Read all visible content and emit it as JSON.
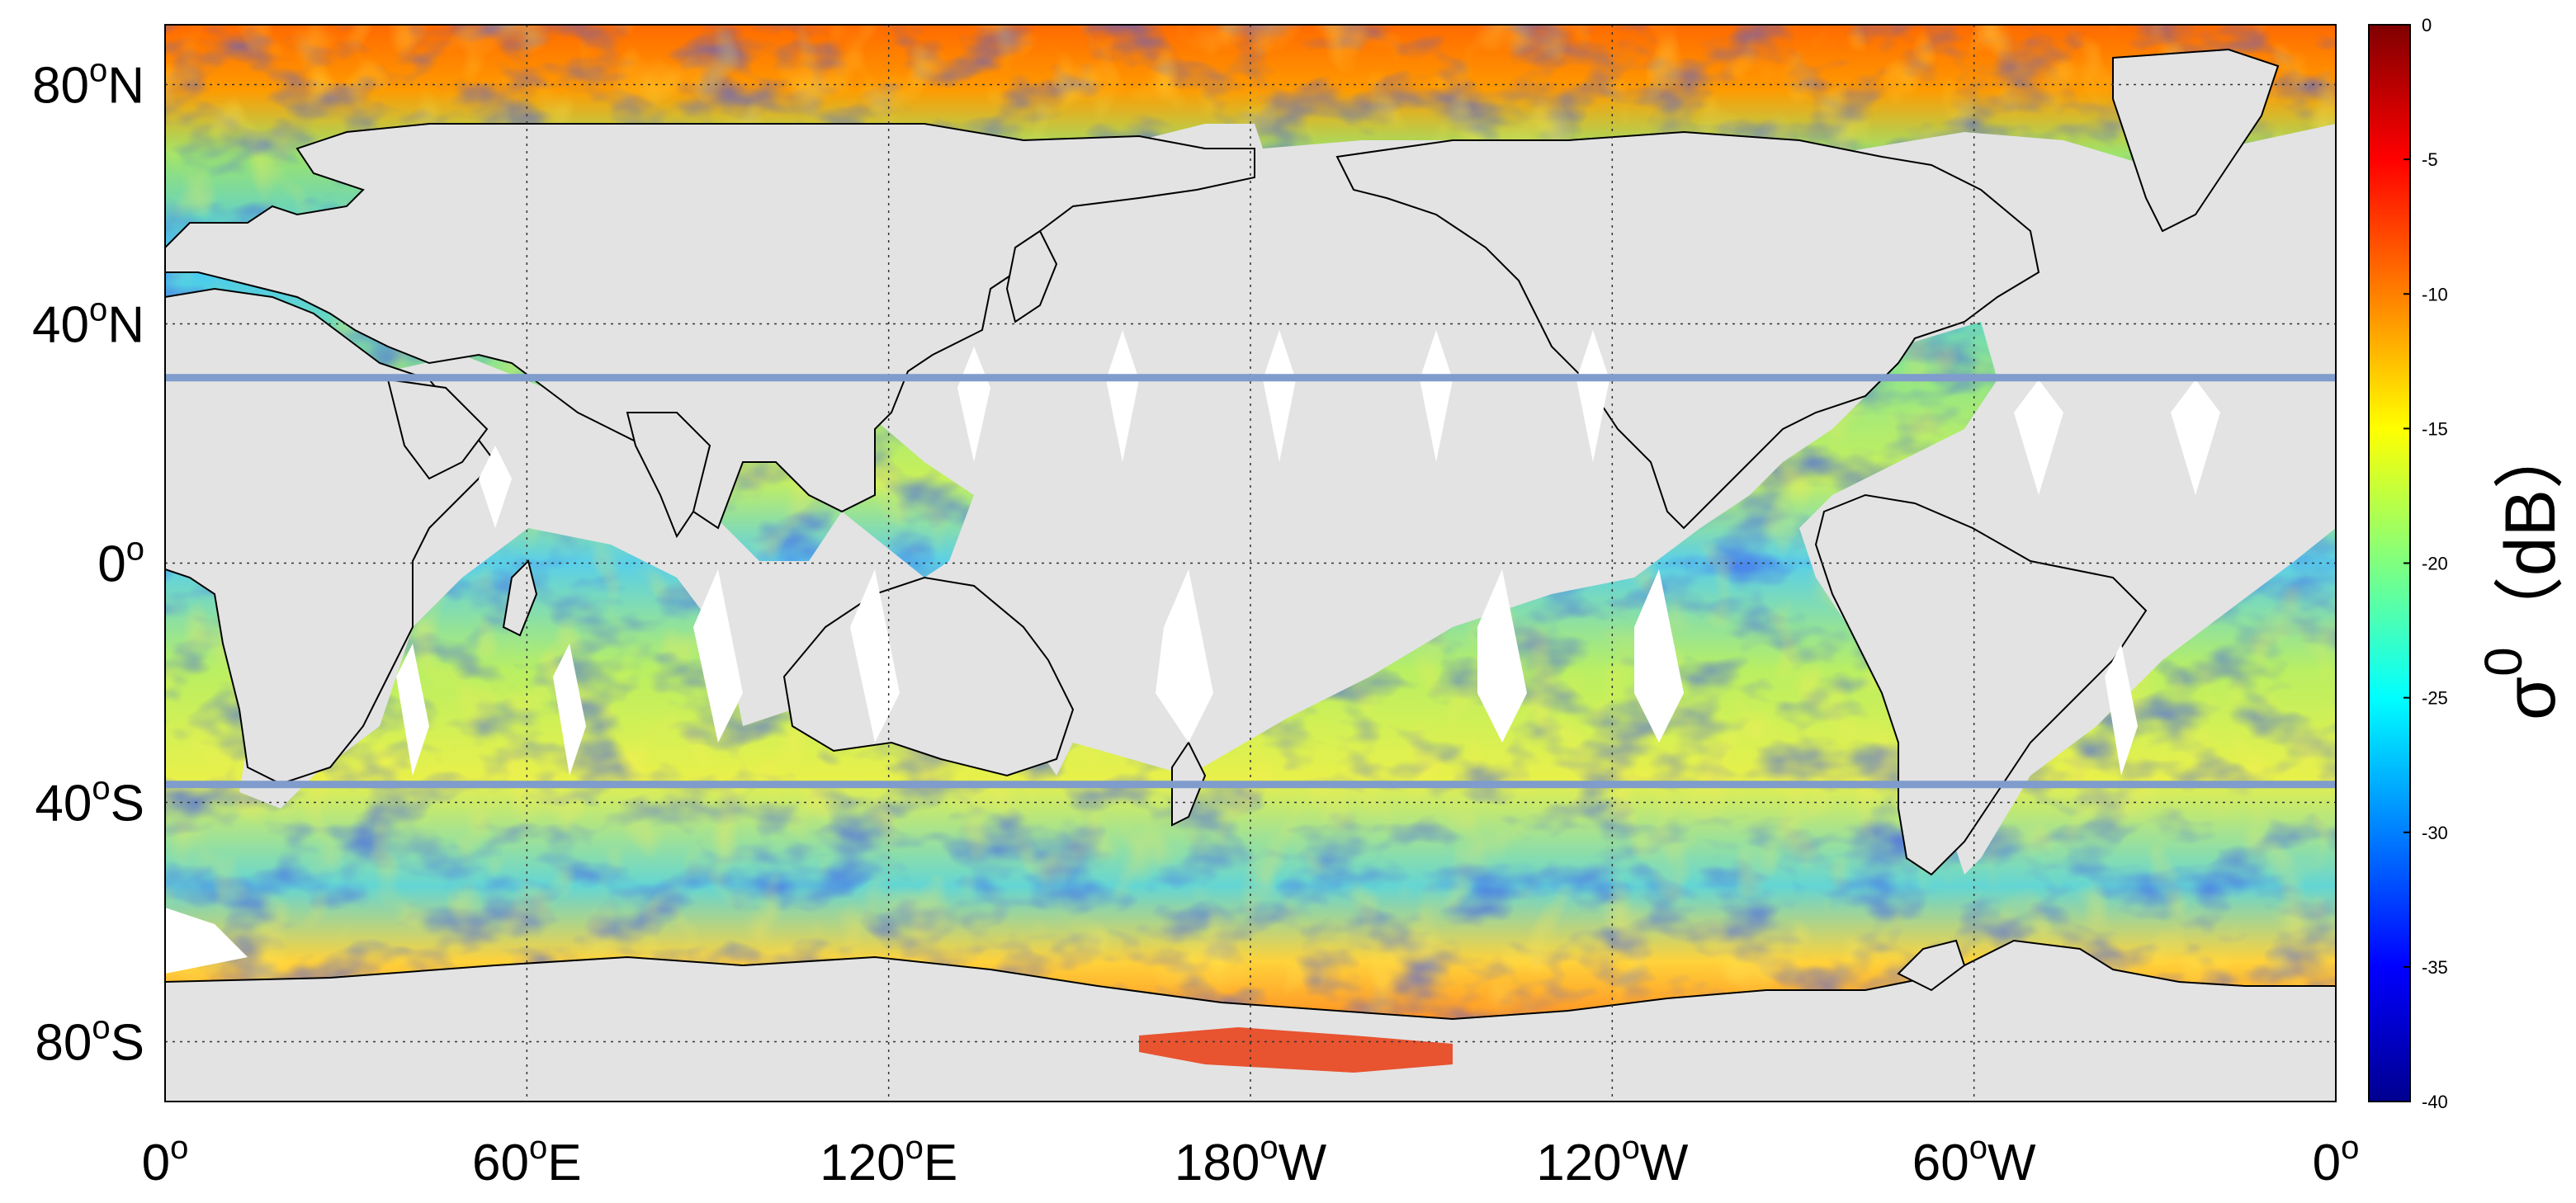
{
  "chart_data": {
    "type": "heatmap",
    "title": "",
    "xlabel": "",
    "ylabel": "",
    "x_range_deg": [
      0,
      360
    ],
    "y_range_deg": [
      -90,
      90
    ],
    "grid": true,
    "x_ticks": [
      {
        "lon": 0,
        "label": "0",
        "sup": "o",
        "suffix": ""
      },
      {
        "lon": 60,
        "label": "60",
        "sup": "o",
        "suffix": "E"
      },
      {
        "lon": 120,
        "label": "120",
        "sup": "o",
        "suffix": "E"
      },
      {
        "lon": 180,
        "label": "180",
        "sup": "o",
        "suffix": "W"
      },
      {
        "lon": 240,
        "label": "120",
        "sup": "o",
        "suffix": "W"
      },
      {
        "lon": 300,
        "label": "60",
        "sup": "o",
        "suffix": "W"
      },
      {
        "lon": 360,
        "label": "0",
        "sup": "o",
        "suffix": ""
      }
    ],
    "y_ticks": [
      {
        "lat": 80,
        "label": "80",
        "sup": "o",
        "suffix": "N"
      },
      {
        "lat": 40,
        "label": "40",
        "sup": "o",
        "suffix": "N"
      },
      {
        "lat": 0,
        "label": "0",
        "sup": "o",
        "suffix": ""
      },
      {
        "lat": -40,
        "label": "40",
        "sup": "o",
        "suffix": "S"
      },
      {
        "lat": -80,
        "label": "80",
        "sup": "o",
        "suffix": "S"
      }
    ],
    "reference_lines_lat": [
      31,
      -37
    ],
    "reference_line_color": "#7f9ccc",
    "land_color": "#e3e3e3",
    "colorbar": {
      "min": -40,
      "max": 0,
      "ticks": [
        0,
        -5,
        -10,
        -15,
        -20,
        -25,
        -30,
        -35,
        -40
      ],
      "label_main": "σ",
      "label_sup": "0",
      "label_unit": "（dB）",
      "colormap": "jet"
    }
  }
}
